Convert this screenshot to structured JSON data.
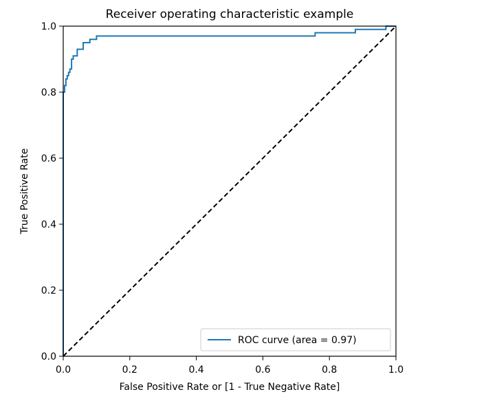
{
  "chart_data": {
    "type": "line",
    "title": "Receiver operating characteristic example",
    "xlabel": "False Positive Rate or [1 - True Negative Rate]",
    "ylabel": "True Positive Rate",
    "xlim": [
      0.0,
      1.0
    ],
    "ylim": [
      0.0,
      1.0
    ],
    "x_ticks": [
      "0.0",
      "0.2",
      "0.4",
      "0.6",
      "0.8",
      "1.0"
    ],
    "y_ticks": [
      "0.0",
      "0.2",
      "0.4",
      "0.6",
      "0.8",
      "1.0"
    ],
    "grid": false,
    "legend": {
      "position": "lower-right",
      "entries": [
        "ROC curve (area = 0.97)"
      ]
    },
    "series": [
      {
        "name": "ROC curve (area = 0.97)",
        "color": "#1f77b4",
        "style": "solid",
        "x": [
          0.0,
          0.0,
          0.004,
          0.004,
          0.008,
          0.008,
          0.012,
          0.012,
          0.016,
          0.016,
          0.02,
          0.02,
          0.025,
          0.025,
          0.03,
          0.03,
          0.042,
          0.042,
          0.06,
          0.06,
          0.08,
          0.08,
          0.1,
          0.1,
          0.757,
          0.757,
          0.878,
          0.878,
          0.97,
          0.97,
          1.0
        ],
        "y": [
          0.0,
          0.8,
          0.8,
          0.82,
          0.82,
          0.84,
          0.84,
          0.85,
          0.85,
          0.86,
          0.86,
          0.87,
          0.87,
          0.9,
          0.9,
          0.91,
          0.91,
          0.93,
          0.93,
          0.95,
          0.95,
          0.96,
          0.96,
          0.97,
          0.97,
          0.98,
          0.98,
          0.99,
          0.99,
          1.0,
          1.0
        ]
      },
      {
        "color": "#000000",
        "style": "dashed",
        "x": [
          0.0,
          1.0
        ],
        "y": [
          0.0,
          1.0
        ]
      }
    ]
  }
}
